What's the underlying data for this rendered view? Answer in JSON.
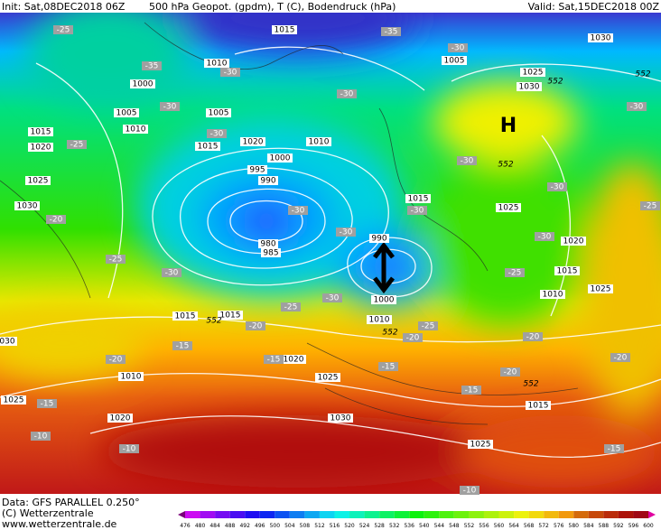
{
  "header": {
    "init": "Init: Sat,08DEC2018 06Z",
    "fields": "500 hPa Geopot. (gpdm), T (C), Bodendruck (hPa)",
    "valid": "Valid: Sat,15DEC2018 00Z"
  },
  "footer": {
    "data": "Data: GFS PARALLEL 0.250°",
    "copyright": "(C) Wetterzentrale",
    "url": "www.wetterzentrale.de"
  },
  "high_label": "H",
  "pressure_labels": [
    "1015",
    "1010",
    "1000",
    "1005",
    "1010",
    "1015",
    "1020",
    "1025",
    "1030",
    "1005",
    "1015",
    "1020",
    "1010",
    "1000",
    "995",
    "990",
    "980",
    "985",
    "990",
    "1000",
    "1010",
    "1015",
    "1015",
    "1010",
    "1020",
    "1020",
    "1025",
    "030",
    "1025",
    "1030",
    "1025",
    "1015",
    "1010",
    "1015",
    "1020",
    "1025",
    "1015",
    "1025",
    "1030",
    "1025",
    "1030",
    "1005"
  ],
  "temperature_labels": [
    "-25",
    "-35",
    "-30",
    "-35",
    "-30",
    "-30",
    "-30",
    "-30",
    "-25",
    "-30",
    "-30",
    "-30",
    "-30",
    "-30",
    "-30",
    "-30",
    "-25",
    "-25",
    "-30",
    "-30",
    "-25",
    "-20",
    "-20",
    "-20",
    "-25",
    "-15",
    "-15",
    "-20",
    "-15",
    "-15",
    "-20",
    "-20",
    "-15",
    "-10",
    "-10",
    "-15",
    "-10",
    "-20",
    "-25"
  ],
  "height_labels": [
    "552",
    "552",
    "552",
    "552",
    "552",
    "552"
  ],
  "scale_labels": [
    476,
    480,
    484,
    488,
    492,
    496,
    500,
    504,
    508,
    512,
    516,
    520,
    524,
    528,
    532,
    536,
    540,
    544,
    548,
    552,
    556,
    560,
    564,
    568,
    572,
    576,
    580,
    584,
    588,
    592,
    596,
    600
  ]
}
